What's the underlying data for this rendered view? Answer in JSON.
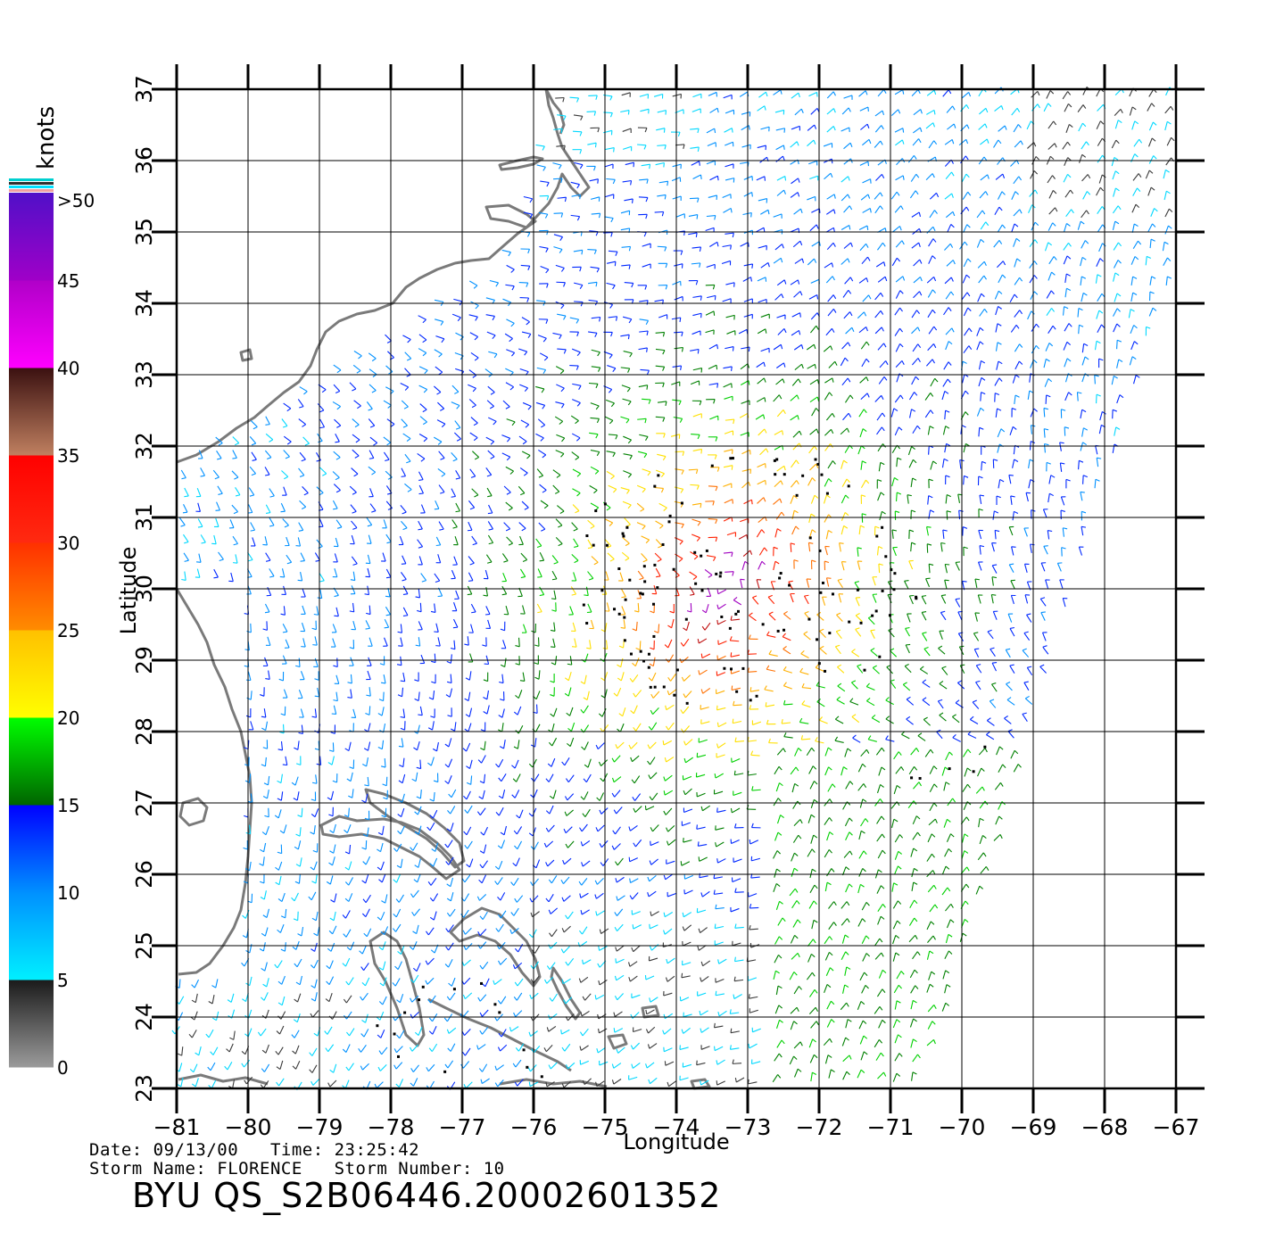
{
  "colorbar": {
    "unit_label": "knots",
    "bands": [
      {
        "from": 0,
        "to": 5,
        "colors": [
          "#9b9b9b",
          "#1a1a1a"
        ]
      },
      {
        "from": 5,
        "to": 10,
        "colors": [
          "#00f0ff",
          "#0090ff"
        ]
      },
      {
        "from": 10,
        "to": 15,
        "colors": [
          "#0090ff",
          "#0000ff"
        ]
      },
      {
        "from": 15,
        "to": 20,
        "colors": [
          "#006400",
          "#00ff00"
        ]
      },
      {
        "from": 20,
        "to": 25,
        "colors": [
          "#ffff00",
          "#ffc000"
        ]
      },
      {
        "from": 25,
        "to": 30,
        "colors": [
          "#ff8c00",
          "#ff3000"
        ]
      },
      {
        "from": 30,
        "to": 35,
        "colors": [
          "#ff2a10",
          "#ff0000"
        ]
      },
      {
        "from": 35,
        "to": 40,
        "colors": [
          "#c08060",
          "#3a1010"
        ]
      },
      {
        "from": 40,
        "to": 45,
        "colors": [
          "#ff00ff",
          "#b000c8"
        ]
      },
      {
        "from": 45,
        "to": 50,
        "colors": [
          "#a000c8",
          "#5010c8"
        ]
      }
    ],
    "tick_labels": [
      "0",
      "5",
      "10",
      "15",
      "20",
      "25",
      "30",
      "35",
      "40",
      "45",
      ">50"
    ]
  },
  "axes": {
    "x_label": "Longitude",
    "y_label": "Latitude",
    "lon_range": [
      -81,
      -67
    ],
    "lat_range": [
      23,
      37
    ],
    "lon_ticks": [
      "−81",
      "−80",
      "−79",
      "−78",
      "−77",
      "−76",
      "−75",
      "−74",
      "−73",
      "−72",
      "−71",
      "−70",
      "−69",
      "−68",
      "−67"
    ],
    "lat_ticks": [
      "23",
      "24",
      "25",
      "26",
      "27",
      "28",
      "29",
      "30",
      "31",
      "32",
      "33",
      "34",
      "35",
      "36",
      "37"
    ],
    "grid": true
  },
  "storm": {
    "center_lon": -73.3,
    "center_lat": 30.0
  },
  "footer": {
    "date_line": "Date: 09/13/00   Time: 23:25:42",
    "storm_line": "Storm Name: FLORENCE   Storm Number: 10",
    "file_id": "BYU QS_S2B06446.20002601352"
  }
}
